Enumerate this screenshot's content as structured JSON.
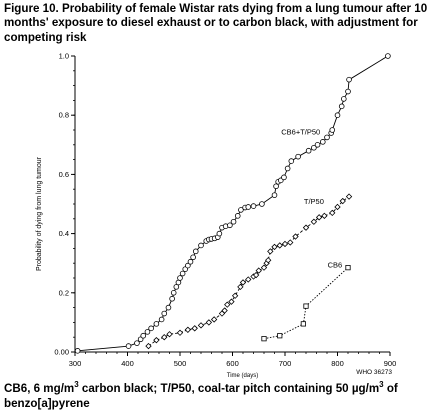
{
  "title": "Figure 10. Probability of female Wistar rats dying from a lung tumour after 10 months' exposure to diesel exhaust or to carbon black, with adjustment for competing risk",
  "caption": {
    "line1_a": "CB6, 6 mg/m",
    "line1_sup": "3",
    "line1_b": " carbon black; T/P50, coal-tar pitch containing 50 µg/m",
    "line1_sup2": "3",
    "line1_c": " of",
    "line2": "benzo[a]pyrene"
  },
  "chart_data": {
    "type": "scatter",
    "xlabel": "Time (days)",
    "ylabel": "Probability of dying from lung tumour",
    "xlim": [
      300,
      900
    ],
    "ylim": [
      0,
      1.0
    ],
    "xticks": [
      "300",
      "400",
      "500",
      "600",
      "700",
      "800",
      "900"
    ],
    "yticks": [
      "0.00",
      "0.2",
      "0.4",
      "0.6",
      "0.8",
      "1.0"
    ],
    "annotation": "WHO 36273",
    "series": [
      {
        "name": "CB6+T/P50",
        "marker": "circle",
        "line": "solid",
        "x": [
          305,
          402,
          418,
          425,
          430,
          438,
          445,
          455,
          465,
          470,
          478,
          485,
          488,
          493,
          497,
          500,
          505,
          510,
          515,
          520,
          525,
          530,
          540,
          550,
          555,
          560,
          566,
          572,
          575,
          580,
          587,
          595,
          602,
          610,
          616,
          624,
          630,
          640,
          656,
          680,
          683,
          687,
          692,
          698,
          705,
          712,
          725,
          745,
          755,
          762,
          772,
          780,
          788,
          790,
          800,
          808,
          812,
          820,
          822,
          896
        ],
        "y": [
          0.004,
          0.02,
          0.03,
          0.043,
          0.055,
          0.068,
          0.08,
          0.095,
          0.11,
          0.13,
          0.15,
          0.18,
          0.2,
          0.22,
          0.235,
          0.25,
          0.265,
          0.28,
          0.292,
          0.305,
          0.32,
          0.34,
          0.36,
          0.375,
          0.38,
          0.382,
          0.384,
          0.388,
          0.4,
          0.42,
          0.425,
          0.428,
          0.44,
          0.46,
          0.48,
          0.488,
          0.49,
          0.493,
          0.5,
          0.53,
          0.56,
          0.575,
          0.58,
          0.59,
          0.62,
          0.645,
          0.66,
          0.68,
          0.69,
          0.7,
          0.71,
          0.725,
          0.74,
          0.75,
          0.8,
          0.83,
          0.855,
          0.88,
          0.92,
          1.0
        ]
      },
      {
        "name": "T/P50",
        "marker": "diamond",
        "line": "dashed",
        "x": [
          440,
          455,
          470,
          480,
          500,
          515,
          528,
          540,
          555,
          565,
          580,
          585,
          590,
          598,
          605,
          615,
          620,
          630,
          640,
          645,
          650,
          660,
          665,
          668,
          672,
          680,
          690,
          700,
          710,
          720,
          740,
          755,
          765,
          775,
          790,
          800,
          810,
          822
        ],
        "y": [
          0.02,
          0.04,
          0.05,
          0.06,
          0.065,
          0.075,
          0.08,
          0.09,
          0.1,
          0.11,
          0.13,
          0.14,
          0.16,
          0.17,
          0.19,
          0.22,
          0.235,
          0.245,
          0.255,
          0.26,
          0.275,
          0.285,
          0.3,
          0.31,
          0.34,
          0.355,
          0.36,
          0.365,
          0.37,
          0.39,
          0.42,
          0.44,
          0.455,
          0.46,
          0.47,
          0.49,
          0.51,
          0.525
        ]
      },
      {
        "name": "CB6",
        "marker": "square",
        "line": "dotted",
        "x": [
          660,
          690,
          735,
          740,
          820
        ],
        "y": [
          0.045,
          0.055,
          0.095,
          0.155,
          0.285
        ]
      }
    ],
    "labels": [
      {
        "text": "CB6+T/P50",
        "x": 730,
        "y": 0.735
      },
      {
        "text": "T/P50",
        "x": 755,
        "y": 0.5
      },
      {
        "text": "CB6",
        "x": 795,
        "y": 0.285
      }
    ]
  }
}
